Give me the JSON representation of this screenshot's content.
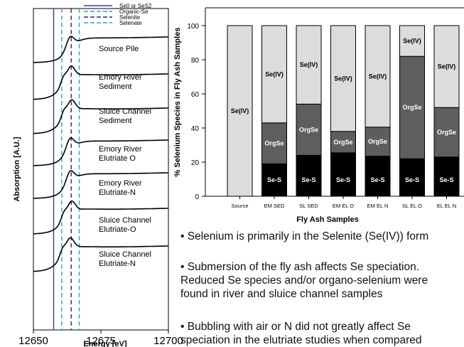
{
  "chart_data": [
    {
      "type": "line",
      "xlabel": "Energy [eV]",
      "ylabel": "Absorption [A.U.]",
      "xlim": [
        12650,
        12700
      ],
      "xticks": [
        12650,
        12675,
        12700
      ],
      "legend": {
        "placement": "top-right",
        "entries": [
          {
            "label": "Se0 or SeS2",
            "color": "#3b3b9e",
            "style": "solid"
          },
          {
            "label": "Organic-Se",
            "color": "#2aa3d8",
            "style": "dashed"
          },
          {
            "label": "Selenite",
            "color": "#2a2a6a",
            "style": "dashed"
          },
          {
            "label": "Selenate",
            "color": "#2aa3d8",
            "style": "dashed"
          }
        ]
      },
      "reference_lines_eV": [
        12657.5,
        12660.5,
        12664.0,
        12667.0
      ],
      "series": [
        {
          "label_lines": [
            "Source Pile"
          ],
          "shape": "single",
          "edge": 12663.5,
          "peak": 12663.5
        },
        {
          "label_lines": [
            "Emory River",
            "Sediment"
          ],
          "shape": "double",
          "edge": 12661.0,
          "peak": 12663.8
        },
        {
          "label_lines": [
            "Sluice Channel",
            "Sediment"
          ],
          "shape": "double",
          "edge": 12661.0,
          "peak": 12664.0
        },
        {
          "label_lines": [
            "Emory River",
            "Elutriate O"
          ],
          "shape": "single",
          "edge": 12663.0,
          "peak": 12663.5
        },
        {
          "label_lines": [
            "Emory River",
            "Elutriate-N"
          ],
          "shape": "single",
          "edge": 12663.0,
          "peak": 12663.5
        },
        {
          "label_lines": [
            "Sluice Channel",
            "Elutriate-O"
          ],
          "shape": "double",
          "edge": 12661.5,
          "peak": 12664.0
        },
        {
          "label_lines": [
            "Sluice Channel",
            "Elutriate-N"
          ],
          "shape": "double",
          "edge": 12660.5,
          "peak": 12663.5
        }
      ]
    },
    {
      "type": "bar",
      "stacked": true,
      "xlabel": "Fly  Ash Samples",
      "ylabel": "% Selenium Species in Fly Ash Samples",
      "ylim": [
        0,
        100
      ],
      "yticks": [
        0,
        20,
        40,
        60,
        80,
        100
      ],
      "categories": [
        "Source",
        "EM SED",
        "SL SED",
        "EM EL O",
        "EM EL N",
        "SL EL O",
        "EL EL N"
      ],
      "series": [
        {
          "name": "Se-S",
          "color": "#000000",
          "text_color": "#ffffff",
          "values": [
            0,
            19,
            24,
            25.5,
            23.5,
            22,
            23
          ]
        },
        {
          "name": "OrgSe",
          "color": "#5e5e5e",
          "text_color": "#ffffff",
          "values": [
            0,
            24,
            30,
            12.5,
            17,
            60,
            29
          ]
        },
        {
          "name": "Se(IV)",
          "color": "#dcdcdc",
          "text_color": "#000000",
          "values": [
            100,
            57,
            46,
            62,
            59.5,
            18,
            48
          ]
        }
      ],
      "segment_labels": {
        "Se-S": [
          "",
          "Se-S",
          "Se-S",
          "Se-S",
          "Se-S",
          "Se-S",
          "Se-S"
        ],
        "OrgSe": [
          "",
          "OrgSe",
          "OrgSe",
          "OrgSe",
          "OrgSe",
          "OrgSe",
          "OrgSe"
        ],
        "Se(IV)": [
          "Se(IV)",
          "Se(IV)",
          "Se(IV)",
          "Se(IV)",
          "Se(IV)",
          "Se(IV)",
          "Se(IV)"
        ]
      }
    }
  ],
  "bullets": [
    {
      "lines": [
        "• Selenium is primarily in the Selenite (Se(IV)) form"
      ]
    },
    {
      "lines": [
        "• Submersion of the fly ash affects Se speciation.",
        "Reduced Se species and/or organo-selenium were",
        "found in river and sluice channel samples"
      ]
    },
    {
      "lines": [
        "• Bubbling with air or N did not greatly affect Se",
        "speciation in the elutriate studies when compared"
      ]
    }
  ]
}
